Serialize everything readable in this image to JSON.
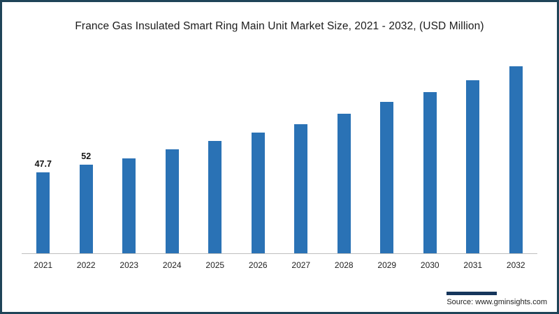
{
  "title": "France Gas Insulated Smart Ring Main Unit Market Size, 2021 - 2032, (USD Million)",
  "source": {
    "label": "Source:",
    "value": "www.gminsights.com"
  },
  "colors": {
    "bar": "#2a72b5",
    "frame_border": "#1f4458",
    "source_accent": "#16365c",
    "baseline": "#bfbfbf"
  },
  "chart_data": {
    "type": "bar",
    "title": "France Gas Insulated Smart Ring Main Unit Market Size, 2021 - 2032, (USD Million)",
    "categories": [
      "2021",
      "2022",
      "2023",
      "2024",
      "2025",
      "2026",
      "2027",
      "2028",
      "2029",
      "2030",
      "2031",
      "2032"
    ],
    "values": [
      47.7,
      52,
      56,
      61,
      66,
      71,
      76,
      82,
      89,
      95,
      102,
      110
    ],
    "bar_labels": [
      "47.7",
      "52",
      "",
      "",
      "",
      "",
      "",
      "",
      "",
      "",
      "",
      ""
    ],
    "ylim": [
      0,
      115
    ],
    "xlabel": "",
    "ylabel": "",
    "grid": false,
    "legend": "none"
  }
}
